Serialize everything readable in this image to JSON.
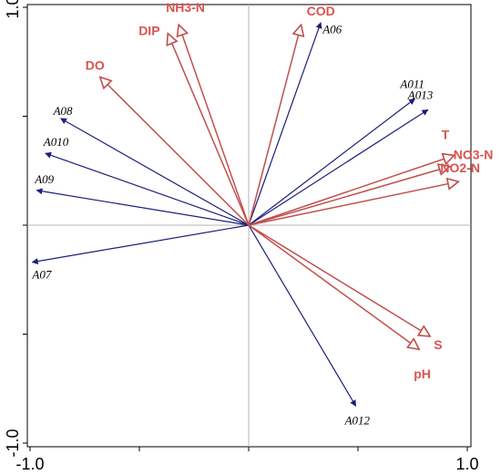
{
  "chart_data": {
    "type": "biplot",
    "title": "",
    "xlabel": "",
    "ylabel": "",
    "xlim": [
      -1.0,
      1.0
    ],
    "ylim": [
      -1.0,
      1.0
    ],
    "grid": false,
    "x_ticks": [
      -1.0,
      -0.5,
      0.0,
      0.5,
      1.0
    ],
    "y_ticks": [
      -1.0,
      -0.5,
      0.0,
      0.5,
      1.0
    ],
    "x_tick_labels": [
      {
        "value": -1.0,
        "label": "-1.0"
      },
      {
        "value": 1.0,
        "label": "1.0"
      }
    ],
    "y_tick_labels": [
      {
        "value": 1.0,
        "label": "1.0"
      },
      {
        "value": -1.0,
        "label": "-1.0"
      }
    ],
    "colors": {
      "species": "#1b1f7a",
      "environment": "#c0504d",
      "env_label": "#d9534f",
      "frame": "#000000",
      "zero_lines": "#b4b4b4"
    },
    "species": [
      {
        "name": "A06",
        "x": 0.33,
        "y": 0.93
      },
      {
        "name": "A011",
        "x": 0.76,
        "y": 0.58
      },
      {
        "name": "A013",
        "x": 0.82,
        "y": 0.53
      },
      {
        "name": "A08",
        "x": -0.86,
        "y": 0.49
      },
      {
        "name": "A010",
        "x": -0.93,
        "y": 0.33
      },
      {
        "name": "A09",
        "x": -0.97,
        "y": 0.16
      },
      {
        "name": "A07",
        "x": -0.99,
        "y": -0.17
      },
      {
        "name": "A012",
        "x": 0.49,
        "y": -0.83
      }
    ],
    "environment": [
      {
        "name": "NH3-N",
        "x": -0.32,
        "y": 0.92
      },
      {
        "name": "DIP",
        "x": -0.37,
        "y": 0.88
      },
      {
        "name": "COD",
        "x": 0.24,
        "y": 0.92
      },
      {
        "name": "DO",
        "x": -0.68,
        "y": 0.68
      },
      {
        "name": "T",
        "x": 0.94,
        "y": 0.32
      },
      {
        "name": "NO3-N",
        "x": 0.92,
        "y": 0.27
      },
      {
        "name": "NO2-N",
        "x": 0.96,
        "y": 0.2
      },
      {
        "name": "S",
        "x": 0.83,
        "y": -0.51
      },
      {
        "name": "pH",
        "x": 0.78,
        "y": -0.57
      }
    ]
  }
}
